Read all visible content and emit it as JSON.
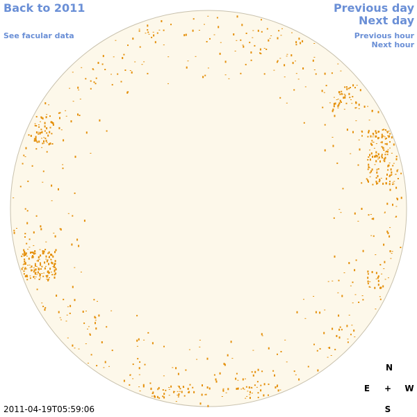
{
  "nav": {
    "back_year": "Back to 2011",
    "facular": "See facular data",
    "prev_day": "Previous day",
    "next_day": "Next day",
    "prev_hour": "Previous hour",
    "next_hour": "Next hour"
  },
  "compass": {
    "north": "N",
    "south": "S",
    "east": "E",
    "west": "W",
    "center": "+"
  },
  "timestamp": "2011-04-19T05:59:06",
  "colors": {
    "disk_fill": "#fdf8ea",
    "disk_stroke": "#c8c1ad",
    "facula": "#e48f0a",
    "link": "#6a8fd6"
  }
}
